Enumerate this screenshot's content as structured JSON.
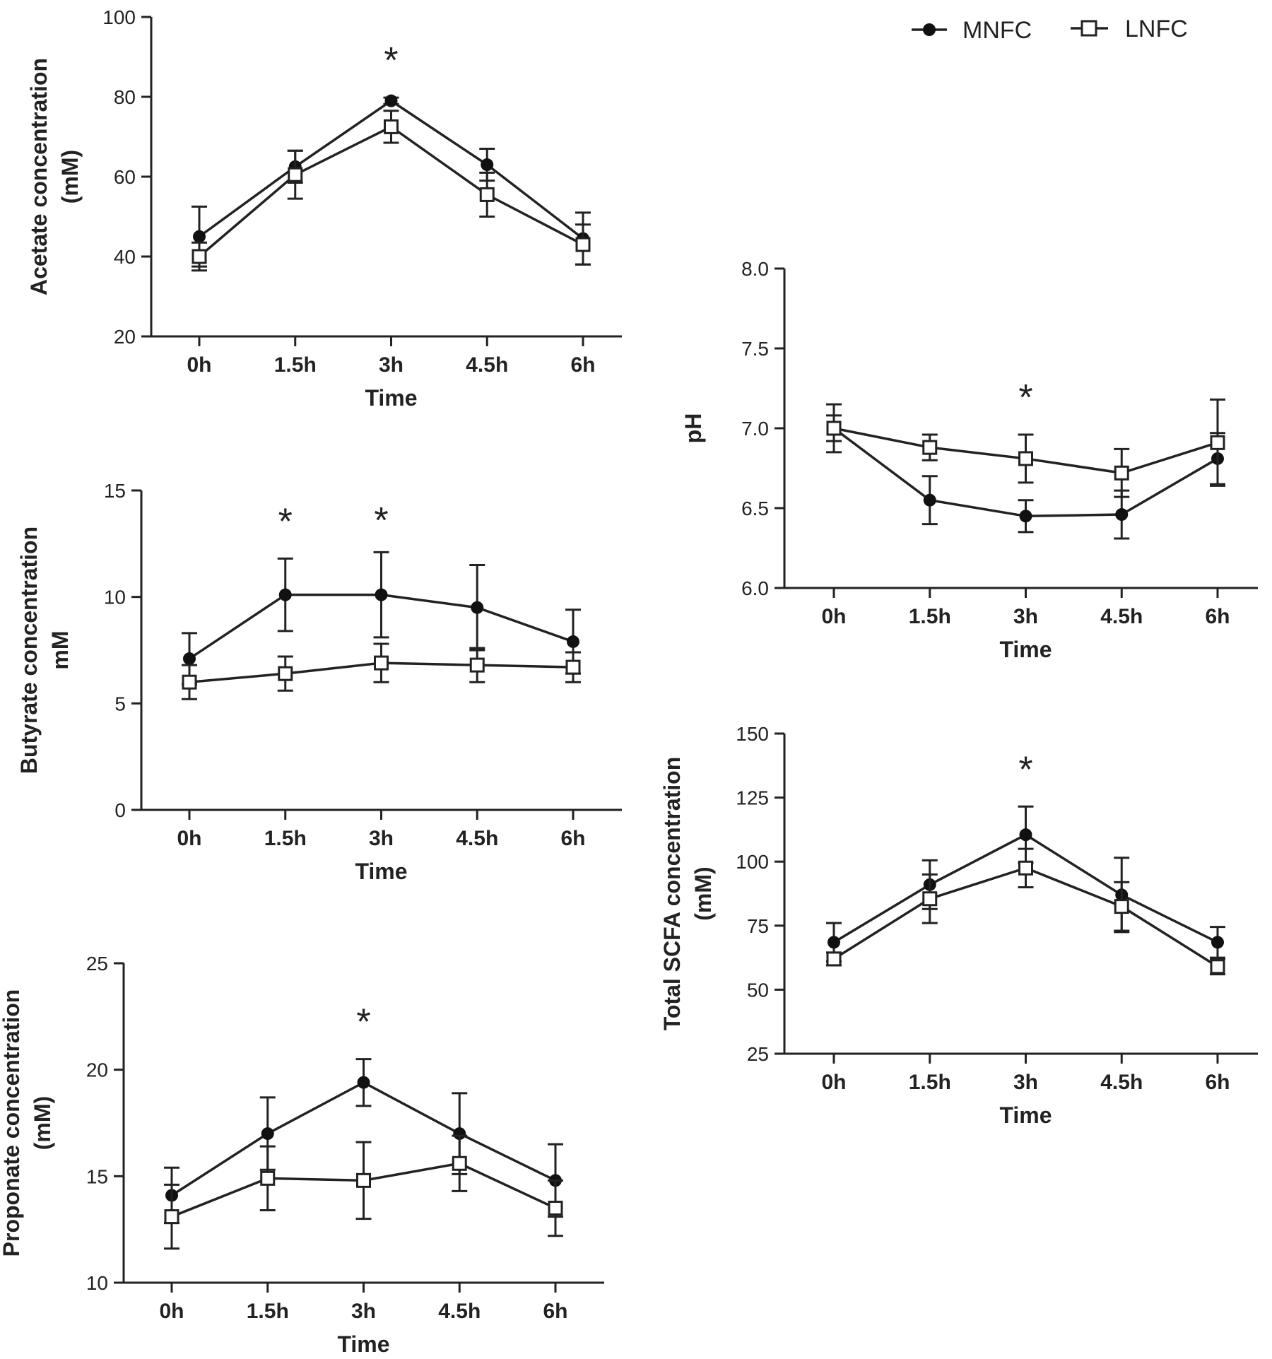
{
  "legend": {
    "entries": [
      {
        "name": "MNFC",
        "marker": "filled-circle"
      },
      {
        "name": "LNFC",
        "marker": "open-square"
      }
    ]
  },
  "chart_data": [
    {
      "id": "acetate",
      "type": "line",
      "ylabel_lines": [
        "Acetate concentration",
        "(mM)"
      ],
      "xlabel": "Time",
      "categories": [
        "0h",
        "1.5h",
        "3h",
        "4.5h",
        "6h"
      ],
      "ylim": [
        20,
        100
      ],
      "yticks": [
        20,
        40,
        60,
        80,
        100
      ],
      "series": [
        {
          "name": "MNFC",
          "values": [
            45,
            62.5,
            79,
            63,
            44.5
          ],
          "errors": [
            7.5,
            4,
            0.8,
            4,
            6.5
          ]
        },
        {
          "name": "LNFC",
          "values": [
            40,
            60.5,
            72.5,
            55.5,
            43
          ],
          "errors": [
            3.5,
            6,
            4,
            5.5,
            5
          ]
        }
      ],
      "significance": [
        {
          "category": "3h",
          "label": "*"
        }
      ]
    },
    {
      "id": "butyrate",
      "type": "line",
      "ylabel_lines": [
        "Butyrate concentration",
        "mM"
      ],
      "xlabel": "Time",
      "categories": [
        "0h",
        "1.5h",
        "3h",
        "4.5h",
        "6h"
      ],
      "ylim": [
        0,
        15
      ],
      "yticks": [
        0,
        5,
        10,
        15
      ],
      "series": [
        {
          "name": "MNFC",
          "values": [
            7.1,
            10.1,
            10.1,
            9.5,
            7.9
          ],
          "errors": [
            1.2,
            1.7,
            2,
            2,
            1.5
          ]
        },
        {
          "name": "LNFC",
          "values": [
            6.0,
            6.4,
            6.9,
            6.8,
            6.7
          ],
          "errors": [
            0.8,
            0.8,
            0.9,
            0.8,
            0.7
          ]
        }
      ],
      "significance": [
        {
          "category": "1.5h",
          "label": "*"
        },
        {
          "category": "3h",
          "label": "*"
        }
      ]
    },
    {
      "id": "propionate",
      "type": "line",
      "ylabel_lines": [
        "Proponate concentration",
        "(mM)"
      ],
      "xlabel": "Time",
      "categories": [
        "0h",
        "1.5h",
        "3h",
        "4.5h",
        "6h"
      ],
      "ylim": [
        10,
        25
      ],
      "yticks": [
        10,
        15,
        20,
        25
      ],
      "series": [
        {
          "name": "MNFC",
          "values": [
            14.1,
            17.0,
            19.4,
            17.0,
            14.8
          ],
          "errors": [
            1.3,
            1.7,
            1.1,
            1.9,
            1.7
          ]
        },
        {
          "name": "LNFC",
          "values": [
            13.1,
            14.9,
            14.8,
            15.6,
            13.5
          ],
          "errors": [
            1.5,
            1.5,
            1.8,
            1.3,
            1.3
          ]
        }
      ],
      "significance": [
        {
          "category": "3h",
          "label": "*"
        }
      ]
    },
    {
      "id": "ph",
      "type": "line",
      "ylabel_lines": [
        "pH"
      ],
      "xlabel": "Time",
      "categories": [
        "0h",
        "1.5h",
        "3h",
        "4.5h",
        "6h"
      ],
      "ylim": [
        6.0,
        8.0
      ],
      "yticks": [
        6.0,
        6.5,
        7.0,
        7.5,
        8.0
      ],
      "ytick_decimals": 1,
      "series": [
        {
          "name": "MNFC",
          "values": [
            7.0,
            6.55,
            6.45,
            6.46,
            6.81
          ],
          "errors": [
            0.15,
            0.15,
            0.1,
            0.15,
            0.16
          ]
        },
        {
          "name": "LNFC",
          "values": [
            7.0,
            6.88,
            6.81,
            6.72,
            6.91
          ],
          "errors": [
            0.08,
            0.08,
            0.15,
            0.15,
            0.27
          ]
        }
      ],
      "significance": [
        {
          "category": "3h",
          "label": "*"
        }
      ]
    },
    {
      "id": "total-scfa",
      "type": "line",
      "ylabel_lines": [
        "Total SCFA concentration",
        "(mM)"
      ],
      "xlabel": "Time",
      "categories": [
        "0h",
        "1.5h",
        "3h",
        "4.5h",
        "6h"
      ],
      "ylim": [
        25,
        150
      ],
      "yticks": [
        25,
        50,
        75,
        100,
        125,
        150
      ],
      "series": [
        {
          "name": "MNFC",
          "values": [
            68.5,
            91,
            110.5,
            87,
            68.5
          ],
          "errors": [
            7.5,
            9.5,
            11,
            14.5,
            6
          ]
        },
        {
          "name": "LNFC",
          "values": [
            62,
            85.5,
            97.5,
            82.5,
            59
          ],
          "errors": [
            2.5,
            9.5,
            7.5,
            9.5,
            3
          ]
        }
      ],
      "significance": [
        {
          "category": "3h",
          "label": "*"
        }
      ]
    }
  ]
}
